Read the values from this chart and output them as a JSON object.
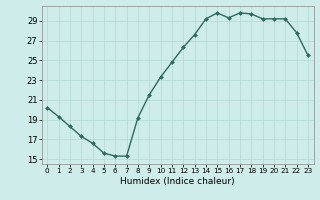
{
  "x": [
    0,
    1,
    2,
    3,
    4,
    5,
    6,
    7,
    8,
    9,
    10,
    11,
    12,
    13,
    14,
    15,
    16,
    17,
    18,
    19,
    20,
    21,
    22,
    23
  ],
  "y": [
    20.2,
    19.3,
    18.3,
    17.3,
    16.6,
    15.6,
    15.3,
    15.3,
    19.2,
    21.5,
    23.3,
    24.8,
    26.3,
    27.6,
    29.2,
    29.8,
    29.3,
    29.8,
    29.7,
    29.2,
    29.2,
    29.2,
    27.8,
    25.5
  ],
  "line_color": "#2d6b5e",
  "marker": "D",
  "markersize": 2.0,
  "linewidth": 1.0,
  "xlabel": "Humidex (Indice chaleur)",
  "xlim": [
    -0.5,
    23.5
  ],
  "ylim": [
    14.5,
    30.5
  ],
  "yticks": [
    15,
    17,
    19,
    21,
    23,
    25,
    27,
    29
  ],
  "xticks": [
    0,
    1,
    2,
    3,
    4,
    5,
    6,
    7,
    8,
    9,
    10,
    11,
    12,
    13,
    14,
    15,
    16,
    17,
    18,
    19,
    20,
    21,
    22,
    23
  ],
  "xtick_labels": [
    "0",
    "1",
    "2",
    "3",
    "4",
    "5",
    "6",
    "7",
    "8",
    "9",
    "10",
    "11",
    "12",
    "13",
    "14",
    "15",
    "16",
    "17",
    "18",
    "19",
    "20",
    "21",
    "22",
    "23"
  ],
  "bg_color": "#ceecea",
  "grid_color": "#b2d8d4",
  "fig_bg": "#ceecea",
  "xlabel_fontsize": 6.5,
  "xtick_fontsize": 5.2,
  "ytick_fontsize": 6.0
}
